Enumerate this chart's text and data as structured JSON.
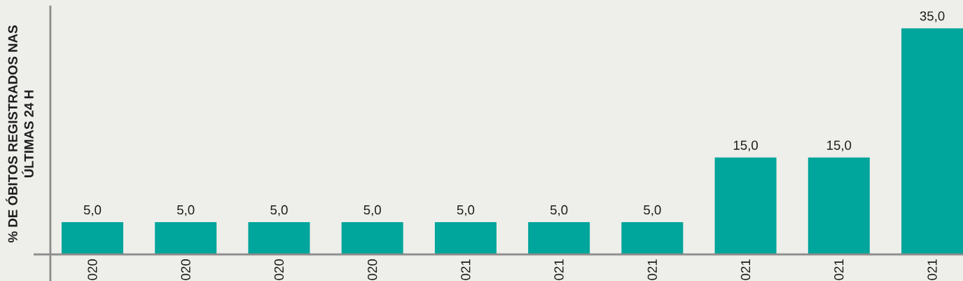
{
  "chart_data": {
    "type": "bar",
    "ylabel": "% DE ÓBITOS REGISTRADOS NAS ÚLTIMAS 24 H",
    "categories": [
      "020",
      "020",
      "020",
      "020",
      "021",
      "021",
      "021",
      "021",
      "021",
      "021"
    ],
    "values": [
      5,
      5,
      5,
      5,
      5,
      5,
      5,
      15,
      15,
      35
    ],
    "value_labels": [
      "5,0",
      "5,0",
      "5,0",
      "5,0",
      "5,0",
      "5,0",
      "5,0",
      "15,0",
      "15,0",
      "35,0"
    ],
    "color": "#00a59b",
    "ylim": [
      0,
      38.5
    ],
    "tick_labels": "x"
  }
}
